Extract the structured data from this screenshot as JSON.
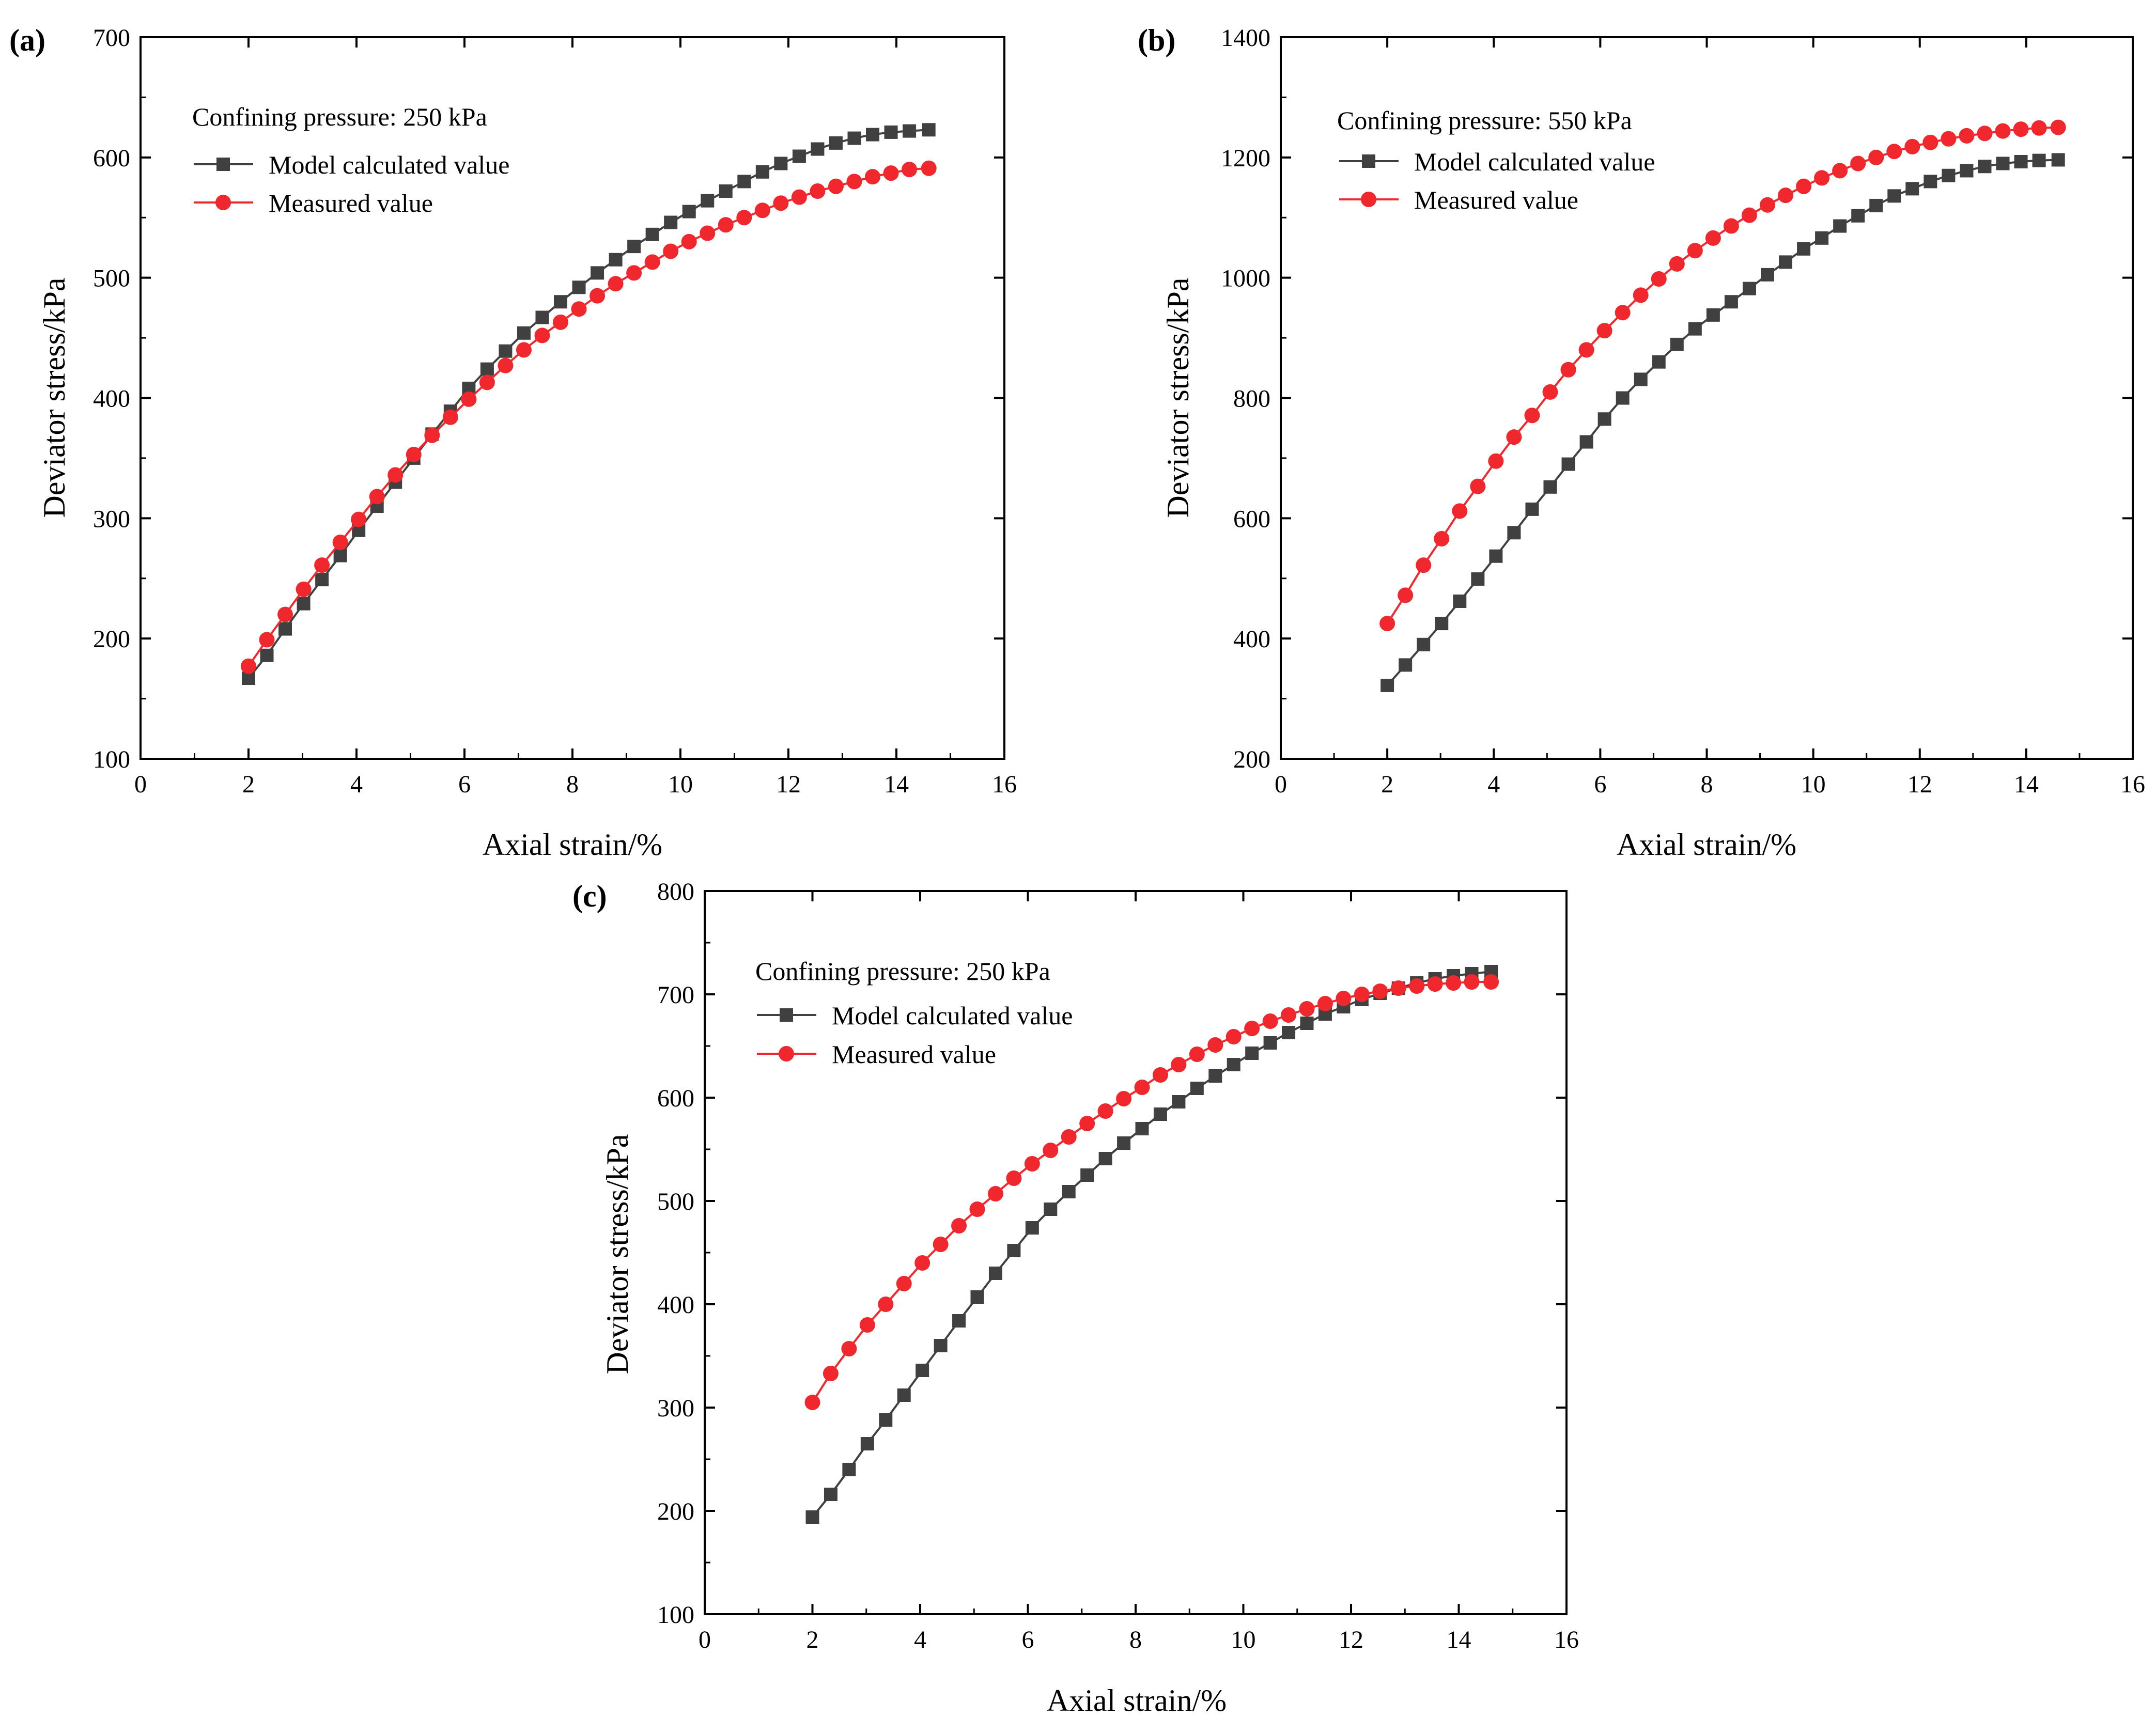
{
  "figure": {
    "colors": {
      "model": "#404040",
      "measured": "#f0282d",
      "axis": "#000000",
      "background": "#ffffff"
    }
  },
  "chart_data": [
    {
      "id": "a",
      "type": "line",
      "panel_label": "(a)",
      "legend_title": "Confining pressure: 250 kPa",
      "xlabel": "Axial strain/%",
      "ylabel": "Deviator stress/kPa",
      "xlim": [
        0,
        16
      ],
      "ylim": [
        100,
        700
      ],
      "xticks": [
        0,
        2,
        4,
        6,
        8,
        10,
        12,
        14,
        16
      ],
      "yticks": [
        100,
        200,
        300,
        400,
        500,
        600,
        700
      ],
      "x": [
        2.0,
        2.34,
        2.68,
        3.02,
        3.36,
        3.7,
        4.04,
        4.38,
        4.72,
        5.06,
        5.4,
        5.74,
        6.08,
        6.42,
        6.76,
        7.1,
        7.44,
        7.78,
        8.12,
        8.46,
        8.8,
        9.14,
        9.48,
        9.82,
        10.16,
        10.5,
        10.84,
        11.18,
        11.52,
        11.86,
        12.2,
        12.54,
        12.88,
        13.22,
        13.56,
        13.9,
        14.24,
        14.6
      ],
      "series": [
        {
          "name": "Model calculated value",
          "marker": "square",
          "color": "#404040",
          "values": [
            167,
            186,
            208,
            229,
            249,
            269,
            290,
            310,
            330,
            350,
            370,
            389,
            408,
            424,
            439,
            454,
            467,
            480,
            492,
            504,
            515,
            526,
            536,
            546,
            555,
            564,
            572,
            580,
            588,
            595,
            601,
            607,
            612,
            616,
            619,
            621,
            622,
            623
          ]
        },
        {
          "name": "Measured value",
          "marker": "circle",
          "color": "#f0282d",
          "values": [
            177,
            199,
            220,
            241,
            261,
            280,
            299,
            318,
            336,
            353,
            369,
            384,
            399,
            413,
            427,
            440,
            452,
            463,
            474,
            485,
            495,
            504,
            513,
            522,
            530,
            537,
            544,
            550,
            556,
            562,
            567,
            572,
            576,
            580,
            584,
            587,
            590,
            591
          ]
        }
      ]
    },
    {
      "id": "b",
      "type": "line",
      "panel_label": "(b)",
      "legend_title": "Confining pressure: 550 kPa",
      "xlabel": "Axial strain/%",
      "ylabel": "Deviator stress/kPa",
      "xlim": [
        0,
        16
      ],
      "ylim": [
        200,
        1400
      ],
      "xticks": [
        0,
        2,
        4,
        6,
        8,
        10,
        12,
        14,
        16
      ],
      "yticks": [
        200,
        400,
        600,
        800,
        1000,
        1200,
        1400
      ],
      "x": [
        2.0,
        2.34,
        2.68,
        3.02,
        3.36,
        3.7,
        4.04,
        4.38,
        4.72,
        5.06,
        5.4,
        5.74,
        6.08,
        6.42,
        6.76,
        7.1,
        7.44,
        7.78,
        8.12,
        8.46,
        8.8,
        9.14,
        9.48,
        9.82,
        10.16,
        10.5,
        10.84,
        11.18,
        11.52,
        11.86,
        12.2,
        12.54,
        12.88,
        13.22,
        13.56,
        13.9,
        14.24,
        14.6
      ],
      "series": [
        {
          "name": "Model calculated value",
          "marker": "square",
          "color": "#404040",
          "values": [
            322,
            356,
            390,
            425,
            462,
            499,
            537,
            576,
            615,
            652,
            690,
            727,
            765,
            800,
            831,
            860,
            889,
            915,
            938,
            960,
            982,
            1005,
            1026,
            1048,
            1066,
            1086,
            1103,
            1120,
            1136,
            1148,
            1160,
            1170,
            1178,
            1185,
            1190,
            1193,
            1195,
            1196
          ]
        },
        {
          "name": "Measured value",
          "marker": "circle",
          "color": "#f0282d",
          "values": [
            425,
            472,
            522,
            566,
            612,
            653,
            695,
            735,
            771,
            810,
            847,
            880,
            912,
            942,
            971,
            998,
            1023,
            1045,
            1066,
            1086,
            1104,
            1121,
            1137,
            1152,
            1166,
            1178,
            1190,
            1200,
            1210,
            1218,
            1225,
            1231,
            1236,
            1240,
            1244,
            1247,
            1249,
            1250
          ]
        }
      ]
    },
    {
      "id": "c",
      "type": "line",
      "panel_label": "(c)",
      "legend_title": "Confining pressure: 250 kPa",
      "xlabel": "Axial strain/%",
      "ylabel": "Deviator stress/kPa",
      "xlim": [
        0,
        16
      ],
      "ylim": [
        100,
        800
      ],
      "xticks": [
        0,
        2,
        4,
        6,
        8,
        10,
        12,
        14,
        16
      ],
      "yticks": [
        100,
        200,
        300,
        400,
        500,
        600,
        700,
        800
      ],
      "x": [
        2.0,
        2.34,
        2.68,
        3.02,
        3.36,
        3.7,
        4.04,
        4.38,
        4.72,
        5.06,
        5.4,
        5.74,
        6.08,
        6.42,
        6.76,
        7.1,
        7.44,
        7.78,
        8.12,
        8.46,
        8.8,
        9.14,
        9.48,
        9.82,
        10.16,
        10.5,
        10.84,
        11.18,
        11.52,
        11.86,
        12.2,
        12.54,
        12.88,
        13.22,
        13.56,
        13.9,
        14.24,
        14.6
      ],
      "series": [
        {
          "name": "Model calculated value",
          "marker": "square",
          "color": "#404040",
          "values": [
            194,
            216,
            240,
            265,
            288,
            312,
            336,
            360,
            384,
            407,
            430,
            452,
            474,
            492,
            509,
            525,
            541,
            556,
            570,
            584,
            596,
            609,
            621,
            632,
            643,
            653,
            663,
            672,
            681,
            688,
            695,
            701,
            706,
            711,
            715,
            718,
            720,
            722
          ]
        },
        {
          "name": "Measured value",
          "marker": "circle",
          "color": "#f0282d",
          "values": [
            305,
            333,
            357,
            380,
            400,
            420,
            440,
            458,
            476,
            492,
            507,
            522,
            536,
            549,
            562,
            575,
            587,
            599,
            610,
            622,
            632,
            642,
            651,
            659,
            667,
            674,
            680,
            686,
            691,
            696,
            700,
            703,
            706,
            708,
            710,
            711,
            712,
            712
          ]
        }
      ]
    }
  ]
}
